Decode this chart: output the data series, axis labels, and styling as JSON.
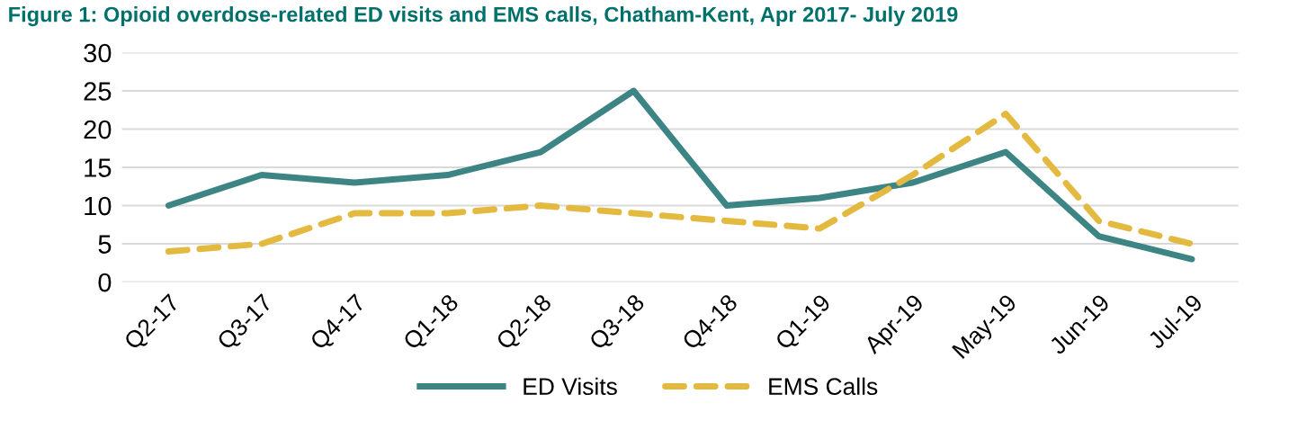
{
  "chart_data": {
    "type": "line",
    "title": "Figure 1: Opioid overdose-related ED visits and EMS calls, Chatham-Kent, Apr 2017- July 2019",
    "categories": [
      "Q2-17",
      "Q3-17",
      "Q4-17",
      "Q1-18",
      "Q2-18",
      "Q3-18",
      "Q4-18",
      "Q1-19",
      "Apr-19",
      "May-19",
      "Jun-19",
      "Jul-19"
    ],
    "series": [
      {
        "name": "ED Visits",
        "color": "#3d8584",
        "line_style": "solid",
        "values": [
          10,
          14,
          13,
          14,
          17,
          25,
          10,
          11,
          13,
          17,
          6,
          3
        ]
      },
      {
        "name": "EMS Calls",
        "color": "#e3b940",
        "line_style": "dashed",
        "values": [
          4,
          5,
          9,
          9,
          10,
          9,
          8,
          7,
          14,
          22,
          8,
          5
        ]
      }
    ],
    "ylim": [
      0,
      30
    ],
    "yticks": [
      0,
      5,
      10,
      15,
      20,
      25,
      30
    ],
    "grid": "y",
    "legend": "bottom",
    "marker": "none"
  }
}
